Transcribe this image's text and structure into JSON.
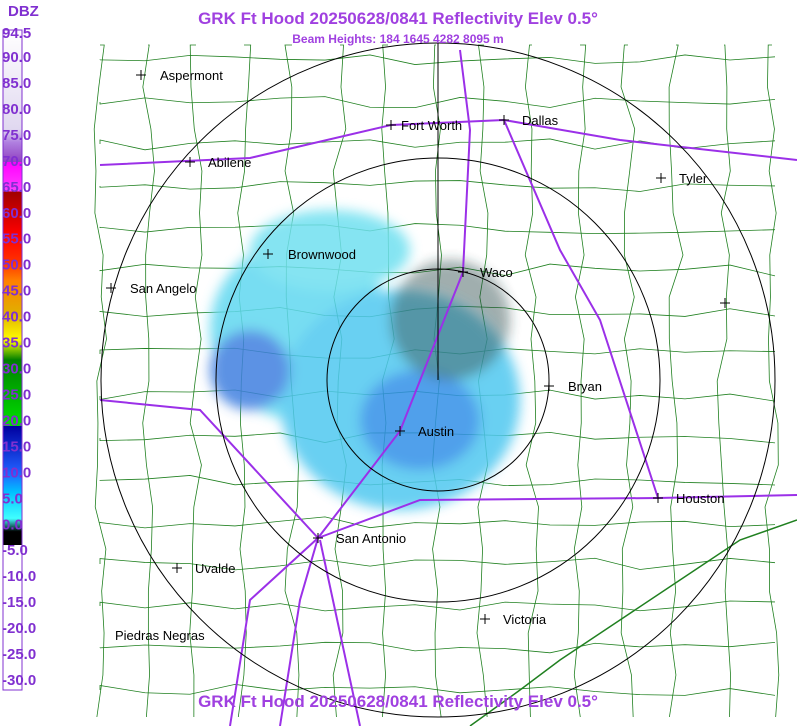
{
  "header": {
    "title": "GRK Ft Hood 20250628/0841 Reflectivity Elev 0.5°",
    "subtitle": "Beam Heights: 184 1645 4282 8095 m"
  },
  "legend": {
    "title": "DBZ",
    "labels": [
      "94.5",
      "90.0",
      "85.0",
      "80.0",
      "75.0",
      "70.0",
      "65.0",
      "60.0",
      "55.0",
      "50.0",
      "45.0",
      "40.0",
      "35.0",
      "30.0",
      "25.0",
      "20.0",
      "15.0",
      "10.0",
      "5.0",
      "0.0",
      "-5.0",
      "-10.0",
      "-15.0",
      "-20.0",
      "-25.0",
      "-30.0"
    ]
  },
  "cities": [
    "Aspermont",
    "Fort Worth",
    "Dallas",
    "Abilene",
    "Tyler",
    "Brownwood",
    "Waco",
    "San Angelo",
    "Bryan",
    "Austin",
    "Houston",
    "San Antonio",
    "Uvalde",
    "Victoria",
    "Piedras Negras"
  ]
}
